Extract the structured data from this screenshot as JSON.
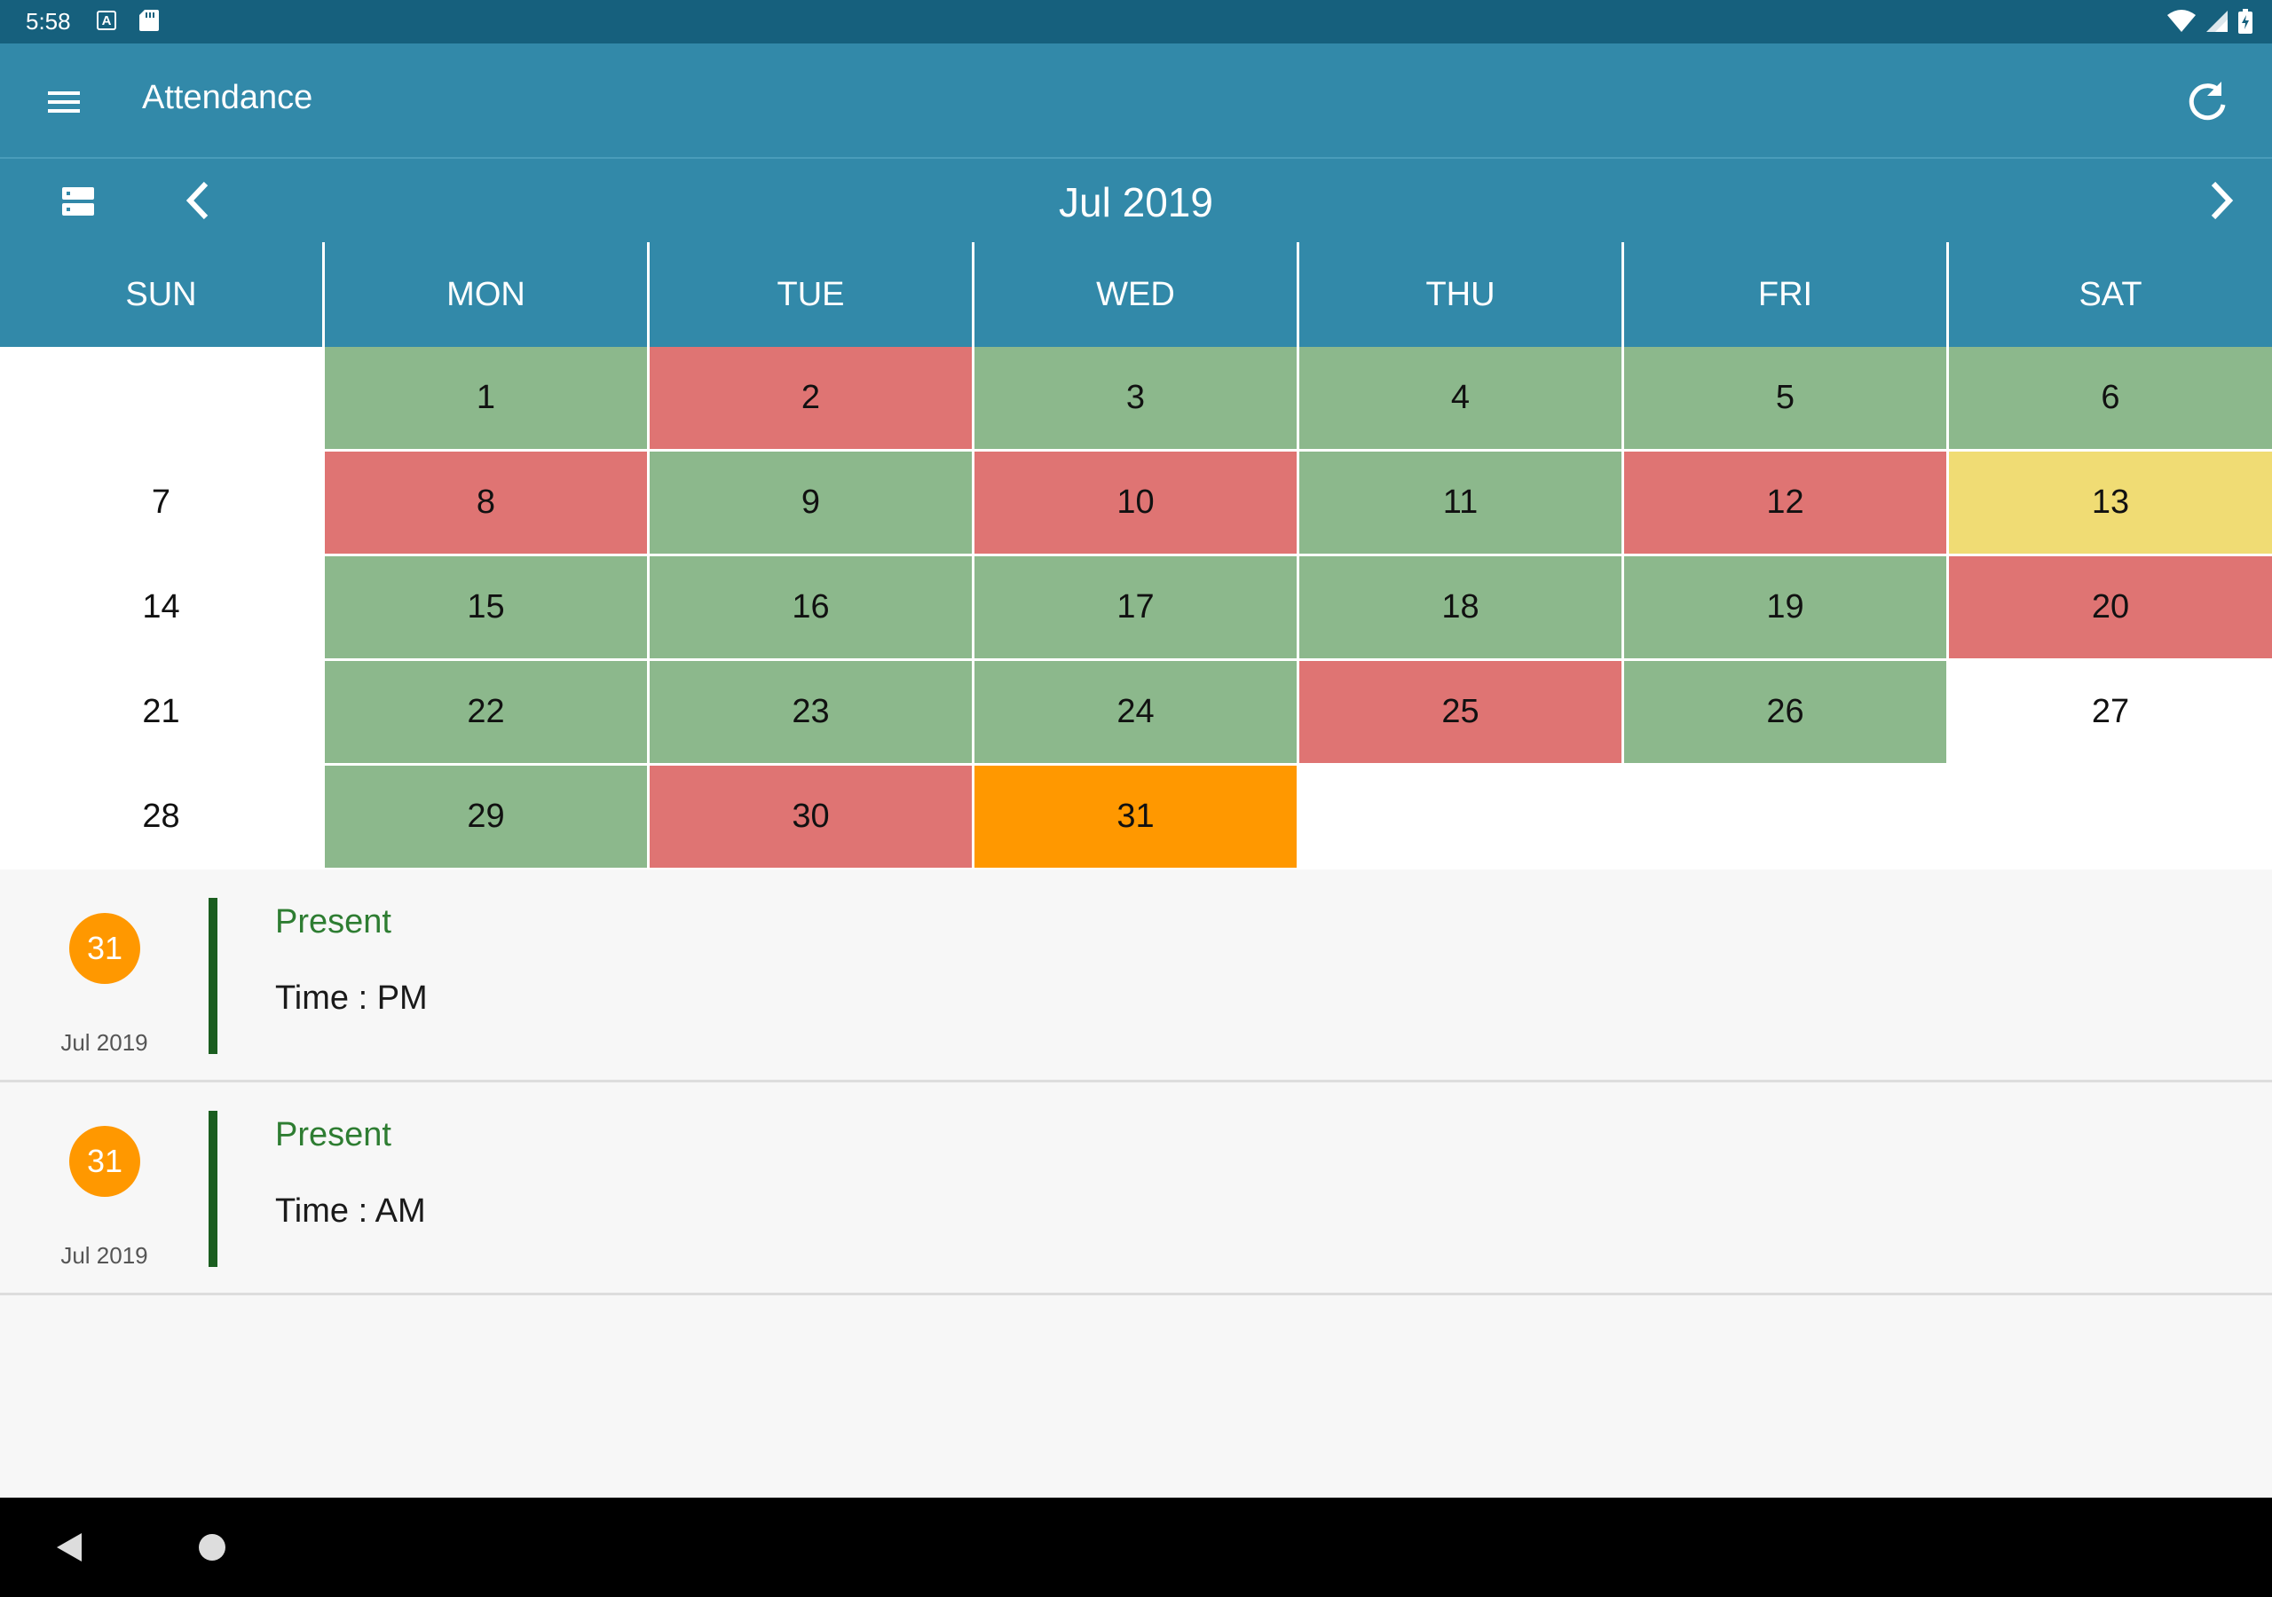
{
  "status_bar": {
    "time": "5:58",
    "a_icon": "A"
  },
  "app_bar": {
    "title": "Attendance",
    "menu_icon": "menu-icon",
    "refresh_icon": "refresh-icon"
  },
  "nav": {
    "month": "Jul 2019"
  },
  "weekdays": [
    "SUN",
    "MON",
    "TUE",
    "WED",
    "THU",
    "FRI",
    "SAT"
  ],
  "colors": {
    "present": "#8cb88c",
    "absent": "#df7473",
    "partial": "#f0dc74",
    "selected": "#ff9800",
    "none": "#ffffff",
    "header": "#3289a9",
    "status_bar": "#16607d"
  },
  "calendar": {
    "weeks": [
      [
        {
          "day": "",
          "status": "none"
        },
        {
          "day": "1",
          "status": "present"
        },
        {
          "day": "2",
          "status": "absent"
        },
        {
          "day": "3",
          "status": "present"
        },
        {
          "day": "4",
          "status": "present"
        },
        {
          "day": "5",
          "status": "present"
        },
        {
          "day": "6",
          "status": "present"
        }
      ],
      [
        {
          "day": "7",
          "status": "none"
        },
        {
          "day": "8",
          "status": "absent"
        },
        {
          "day": "9",
          "status": "present"
        },
        {
          "day": "10",
          "status": "absent"
        },
        {
          "day": "11",
          "status": "present"
        },
        {
          "day": "12",
          "status": "absent"
        },
        {
          "day": "13",
          "status": "partial"
        }
      ],
      [
        {
          "day": "14",
          "status": "none"
        },
        {
          "day": "15",
          "status": "present"
        },
        {
          "day": "16",
          "status": "present"
        },
        {
          "day": "17",
          "status": "present"
        },
        {
          "day": "18",
          "status": "present"
        },
        {
          "day": "19",
          "status": "present"
        },
        {
          "day": "20",
          "status": "absent"
        }
      ],
      [
        {
          "day": "21",
          "status": "none"
        },
        {
          "day": "22",
          "status": "present"
        },
        {
          "day": "23",
          "status": "present"
        },
        {
          "day": "24",
          "status": "present"
        },
        {
          "day": "25",
          "status": "absent"
        },
        {
          "day": "26",
          "status": "present"
        },
        {
          "day": "27",
          "status": "none"
        }
      ],
      [
        {
          "day": "28",
          "status": "none"
        },
        {
          "day": "29",
          "status": "present"
        },
        {
          "day": "30",
          "status": "absent"
        },
        {
          "day": "31",
          "status": "selected"
        },
        {
          "day": "",
          "status": "none"
        },
        {
          "day": "",
          "status": "none"
        },
        {
          "day": "",
          "status": "none"
        }
      ]
    ]
  },
  "records": [
    {
      "day": "31",
      "month": "Jul 2019",
      "status": "Present",
      "time": "Time : PM"
    },
    {
      "day": "31",
      "month": "Jul 2019",
      "status": "Present",
      "time": "Time : AM"
    }
  ]
}
